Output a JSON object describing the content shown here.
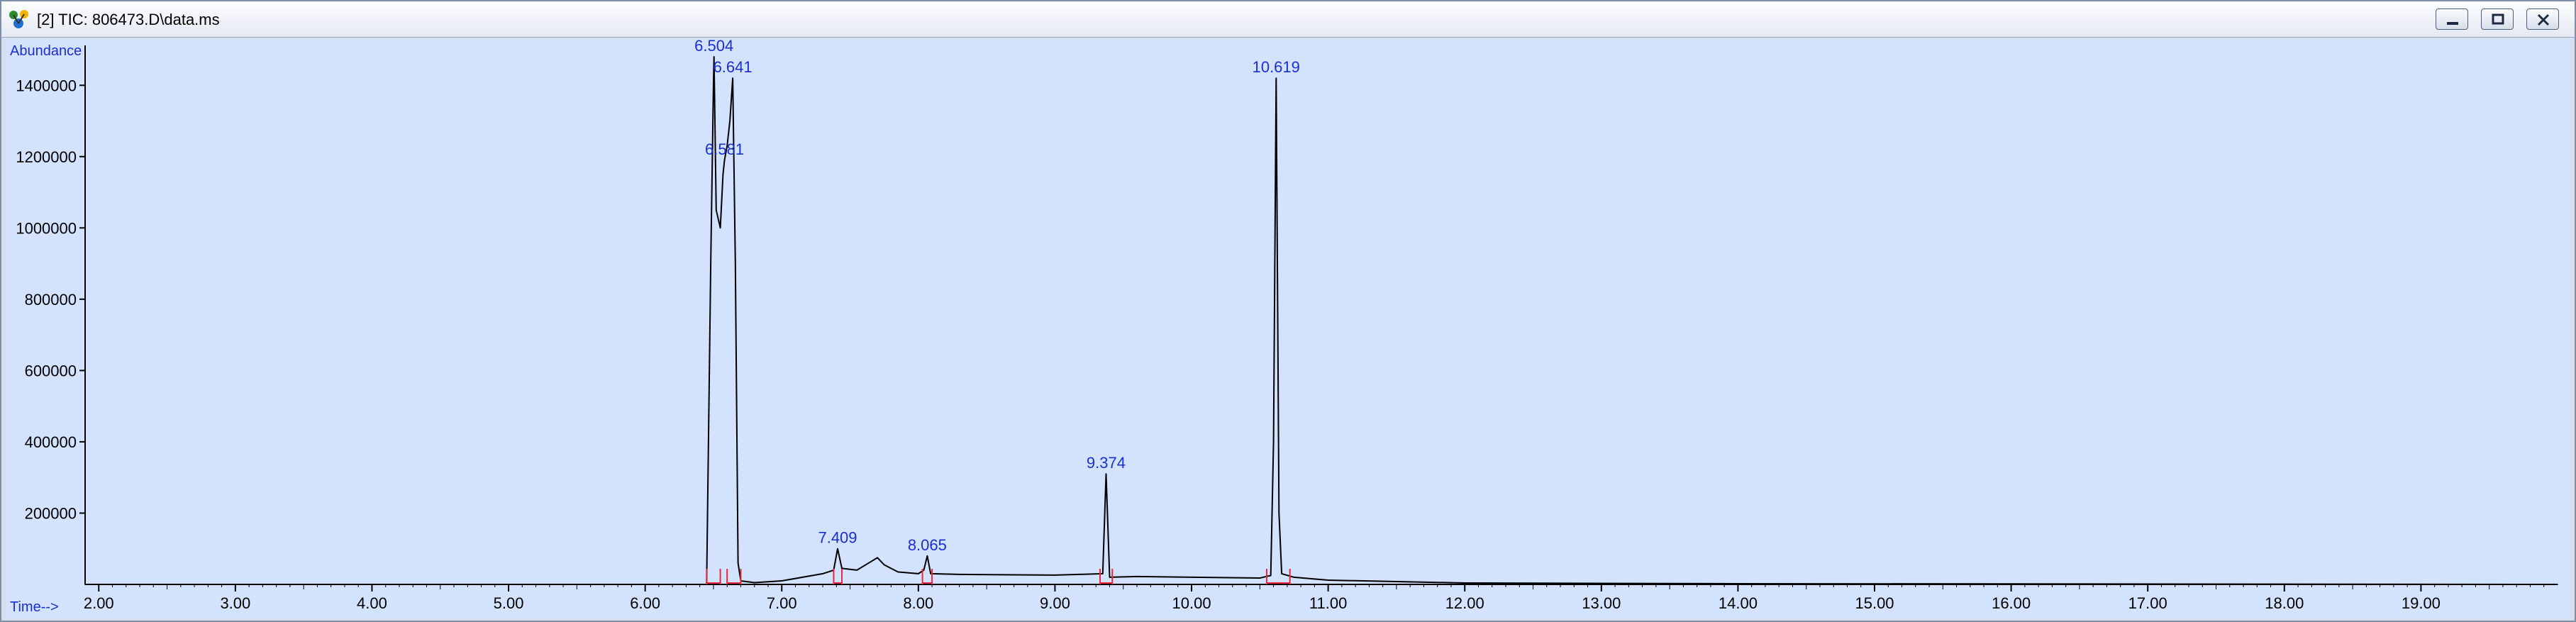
{
  "window": {
    "title": "[2] TIC: 806473.D\\data.ms",
    "icon": "chemstation-molecule-icon",
    "buttons": [
      "minimize",
      "restore",
      "close"
    ]
  },
  "colors": {
    "plot_background": "#d3e2fd",
    "trace": "#000000",
    "integration_marks": "#e8283c",
    "annotation": "#1a2fd0"
  },
  "chart_data": {
    "type": "line",
    "title": "",
    "xlabel": "Time-->",
    "ylabel": "Abundance",
    "xlim": [
      1.9,
      20.0
    ],
    "ylim": [
      0,
      1500000
    ],
    "grid": false,
    "x_ticks": [
      "2.00",
      "3.00",
      "4.00",
      "5.00",
      "6.00",
      "7.00",
      "8.00",
      "9.00",
      "10.00",
      "11.00",
      "12.00",
      "13.00",
      "14.00",
      "15.00",
      "16.00",
      "17.00",
      "18.00",
      "19.00"
    ],
    "y_ticks": [
      "200000",
      "400000",
      "600000",
      "800000",
      "1000000",
      "1200000",
      "1400000"
    ],
    "series": [
      {
        "x": [
          1.9,
          6.45,
          6.48,
          6.5,
          6.504,
          6.52,
          6.55,
          6.57,
          6.581,
          6.6,
          6.62,
          6.641,
          6.66,
          6.68,
          6.7,
          6.8,
          7.0,
          7.3,
          7.38,
          7.409,
          7.44,
          7.55,
          7.7,
          7.75,
          7.85,
          8.0,
          8.04,
          8.065,
          8.09,
          8.3,
          9.0,
          9.35,
          9.374,
          9.4,
          9.6,
          10.5,
          10.58,
          10.6,
          10.619,
          10.64,
          10.66,
          10.75,
          11.0,
          12.0,
          14.0,
          20.0
        ],
        "y": [
          0,
          0,
          900000,
          1400000,
          1480000,
          1050000,
          1000000,
          1150000,
          1190000,
          1230000,
          1300000,
          1420000,
          900000,
          60000,
          10000,
          5000,
          10000,
          30000,
          40000,
          100000,
          45000,
          40000,
          75000,
          55000,
          35000,
          30000,
          40000,
          80000,
          30000,
          28000,
          26000,
          30000,
          310000,
          20000,
          22000,
          18000,
          25000,
          400000,
          1420000,
          200000,
          30000,
          20000,
          12000,
          4000,
          2000,
          0
        ]
      }
    ],
    "peaks": [
      {
        "label": "6.504",
        "x": 6.504,
        "y": 1480000
      },
      {
        "label": "6.581",
        "x": 6.581,
        "y": 1190000
      },
      {
        "label": "6.641",
        "x": 6.641,
        "y": 1420000
      },
      {
        "label": "7.409",
        "x": 7.409,
        "y": 100000
      },
      {
        "label": "8.065",
        "x": 8.065,
        "y": 80000
      },
      {
        "label": "9.374",
        "x": 9.374,
        "y": 310000
      },
      {
        "label": "10.619",
        "x": 10.619,
        "y": 1420000
      }
    ],
    "integration_events": [
      6.45,
      6.55,
      6.6,
      6.7,
      7.38,
      7.44,
      8.03,
      8.1,
      9.33,
      9.42,
      10.55,
      10.72
    ]
  }
}
